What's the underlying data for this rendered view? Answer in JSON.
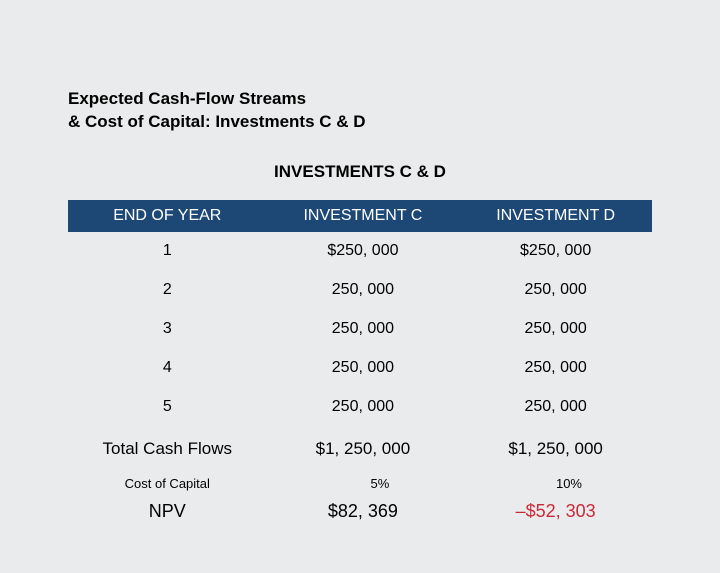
{
  "title_line1": "Expected Cash-Flow Streams",
  "title_line2": "& Cost of Capital: Investments C & D",
  "section_title": "INVESTMENTS C & D",
  "colors": {
    "header_bg": "#1d4875",
    "header_fg": "#ffffff",
    "page_bg": "#eaebec",
    "negative": "#c92a3a",
    "text": "#000000"
  },
  "table": {
    "columns": [
      "END OF YEAR",
      "INVESTMENT C",
      "INVESTMENT D"
    ],
    "col_widths": [
      "34%",
      "33%",
      "33%"
    ],
    "rows": [
      {
        "year": "1",
        "c": "$250, 000",
        "d": "$250, 000"
      },
      {
        "year": "2",
        "c": "250, 000",
        "d": "250, 000"
      },
      {
        "year": "3",
        "c": "250, 000",
        "d": "250, 000"
      },
      {
        "year": "4",
        "c": "250, 000",
        "d": "250, 000"
      },
      {
        "year": "5",
        "c": "250, 000",
        "d": "250, 000"
      }
    ],
    "total": {
      "label": "Total Cash Flows",
      "c": "$1, 250, 000",
      "d": "$1, 250, 000"
    },
    "coc": {
      "label": "Cost of Capital",
      "c": "5%",
      "d": "10%"
    },
    "npv": {
      "label": "NPV",
      "c": "$82, 369",
      "d": "–$52, 303",
      "d_negative": true
    }
  },
  "typography": {
    "title_fontsize": 17,
    "section_fontsize": 17,
    "header_fontsize": 16,
    "cell_fontsize": 16,
    "total_fontsize": 17,
    "coc_fontsize": 13,
    "npv_fontsize": 18
  }
}
